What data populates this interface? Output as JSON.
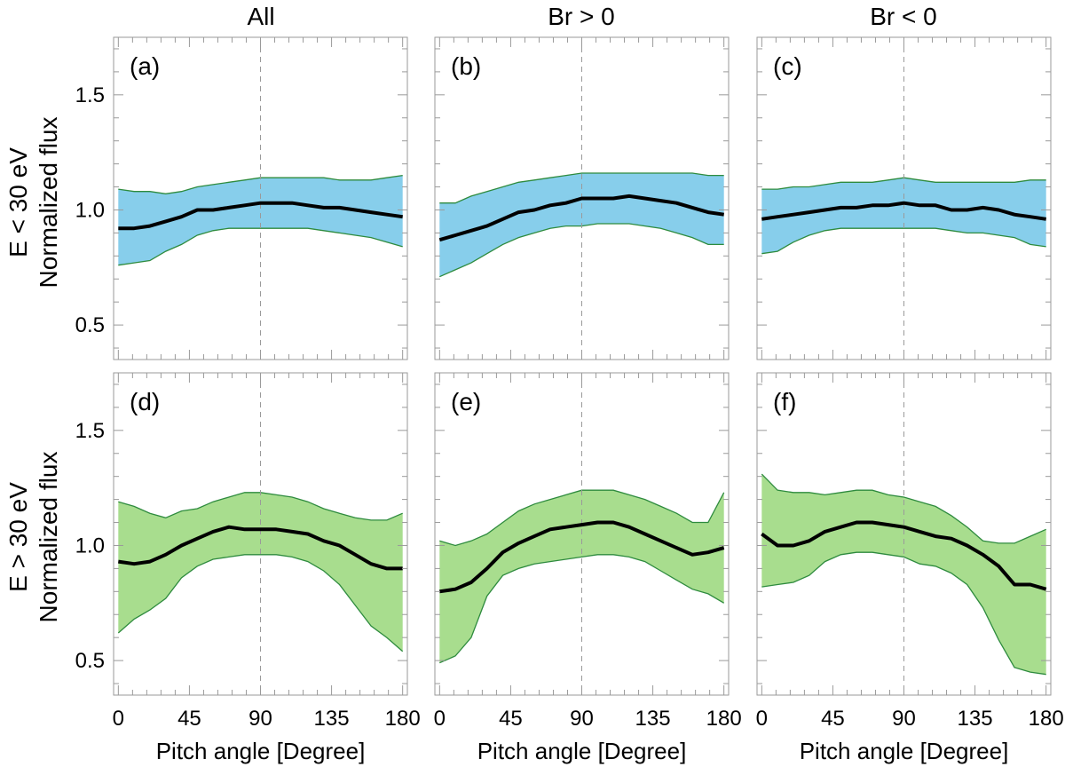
{
  "colors": {
    "low_band": "#87CEEB",
    "high_band": "#A8DD8E",
    "band_edge": "#2E8B3E",
    "mean_line": "#000000"
  },
  "column_titles": [
    "All",
    "Br > 0",
    "Br < 0"
  ],
  "row_labels": [
    {
      "energy": "E < 30 eV",
      "quantity": "Normalized flux"
    },
    {
      "energy": "E > 30 eV",
      "quantity": "Normalized flux"
    }
  ],
  "chart_data": [
    {
      "panel": "(a)",
      "type": "area",
      "column": "All",
      "row": "E < 30 eV",
      "x": [
        0,
        10,
        20,
        30,
        40,
        50,
        60,
        70,
        80,
        90,
        100,
        110,
        120,
        130,
        140,
        150,
        160,
        170,
        180
      ],
      "mean": [
        0.92,
        0.92,
        0.93,
        0.95,
        0.97,
        1.0,
        1.0,
        1.01,
        1.02,
        1.03,
        1.03,
        1.03,
        1.02,
        1.01,
        1.01,
        1.0,
        0.99,
        0.98,
        0.97
      ],
      "upper": [
        1.09,
        1.08,
        1.08,
        1.07,
        1.08,
        1.1,
        1.11,
        1.12,
        1.13,
        1.14,
        1.14,
        1.14,
        1.14,
        1.14,
        1.13,
        1.13,
        1.13,
        1.14,
        1.15
      ],
      "lower": [
        0.76,
        0.77,
        0.78,
        0.82,
        0.85,
        0.89,
        0.91,
        0.92,
        0.92,
        0.92,
        0.92,
        0.92,
        0.92,
        0.91,
        0.9,
        0.89,
        0.88,
        0.86,
        0.84
      ],
      "fill": "low",
      "xlim": [
        -3,
        183
      ],
      "ylim": [
        0.35,
        1.75
      ],
      "xticks": [
        0,
        45,
        90,
        135,
        180
      ],
      "yticks": [
        0.5,
        1.0,
        1.5
      ],
      "xlabel": "Pitch angle [Degree]",
      "ylabel": "Normalized flux"
    },
    {
      "panel": "(b)",
      "type": "area",
      "column": "Br > 0",
      "row": "E < 30 eV",
      "x": [
        0,
        10,
        20,
        30,
        40,
        50,
        60,
        70,
        80,
        90,
        100,
        110,
        120,
        130,
        140,
        150,
        160,
        170,
        180
      ],
      "mean": [
        0.87,
        0.89,
        0.91,
        0.93,
        0.96,
        0.99,
        1.0,
        1.02,
        1.03,
        1.05,
        1.05,
        1.05,
        1.06,
        1.05,
        1.04,
        1.03,
        1.01,
        0.99,
        0.98
      ],
      "upper": [
        1.03,
        1.03,
        1.06,
        1.08,
        1.1,
        1.12,
        1.13,
        1.14,
        1.15,
        1.16,
        1.16,
        1.16,
        1.16,
        1.16,
        1.16,
        1.16,
        1.16,
        1.15,
        1.15
      ],
      "lower": [
        0.71,
        0.74,
        0.77,
        0.81,
        0.85,
        0.88,
        0.9,
        0.92,
        0.93,
        0.93,
        0.94,
        0.94,
        0.94,
        0.93,
        0.92,
        0.9,
        0.88,
        0.85,
        0.85
      ],
      "fill": "low",
      "xlim": [
        -3,
        183
      ],
      "ylim": [
        0.35,
        1.75
      ],
      "xticks": [
        0,
        45,
        90,
        135,
        180
      ],
      "yticks": [
        0.5,
        1.0,
        1.5
      ],
      "xlabel": "Pitch angle [Degree]",
      "ylabel": "Normalized flux"
    },
    {
      "panel": "(c)",
      "type": "area",
      "column": "Br < 0",
      "row": "E < 30 eV",
      "x": [
        0,
        10,
        20,
        30,
        40,
        50,
        60,
        70,
        80,
        90,
        100,
        110,
        120,
        130,
        140,
        150,
        160,
        170,
        180
      ],
      "mean": [
        0.96,
        0.97,
        0.98,
        0.99,
        1.0,
        1.01,
        1.01,
        1.02,
        1.02,
        1.03,
        1.02,
        1.02,
        1.0,
        1.0,
        1.01,
        1.0,
        0.98,
        0.97,
        0.96
      ],
      "upper": [
        1.09,
        1.09,
        1.1,
        1.1,
        1.11,
        1.12,
        1.12,
        1.12,
        1.13,
        1.14,
        1.13,
        1.12,
        1.12,
        1.12,
        1.12,
        1.12,
        1.12,
        1.13,
        1.13
      ],
      "lower": [
        0.81,
        0.82,
        0.86,
        0.89,
        0.91,
        0.92,
        0.92,
        0.92,
        0.92,
        0.92,
        0.92,
        0.92,
        0.91,
        0.9,
        0.9,
        0.89,
        0.88,
        0.85,
        0.84
      ],
      "fill": "low",
      "xlim": [
        -3,
        183
      ],
      "ylim": [
        0.35,
        1.75
      ],
      "xticks": [
        0,
        45,
        90,
        135,
        180
      ],
      "yticks": [
        0.5,
        1.0,
        1.5
      ],
      "xlabel": "Pitch angle [Degree]",
      "ylabel": "Normalized flux"
    },
    {
      "panel": "(d)",
      "type": "area",
      "column": "All",
      "row": "E > 30 eV",
      "x": [
        0,
        10,
        20,
        30,
        40,
        50,
        60,
        70,
        80,
        90,
        100,
        110,
        120,
        130,
        140,
        150,
        160,
        170,
        180
      ],
      "mean": [
        0.93,
        0.92,
        0.93,
        0.96,
        1.0,
        1.03,
        1.06,
        1.08,
        1.07,
        1.07,
        1.07,
        1.06,
        1.05,
        1.02,
        1.0,
        0.96,
        0.92,
        0.9,
        0.9
      ],
      "upper": [
        1.19,
        1.17,
        1.14,
        1.12,
        1.15,
        1.16,
        1.19,
        1.21,
        1.23,
        1.23,
        1.22,
        1.21,
        1.19,
        1.16,
        1.14,
        1.12,
        1.11,
        1.11,
        1.14
      ],
      "lower": [
        0.62,
        0.68,
        0.72,
        0.77,
        0.86,
        0.91,
        0.94,
        0.95,
        0.96,
        0.96,
        0.96,
        0.95,
        0.93,
        0.89,
        0.83,
        0.74,
        0.65,
        0.6,
        0.54
      ],
      "fill": "high",
      "xlim": [
        -3,
        183
      ],
      "ylim": [
        0.35,
        1.75
      ],
      "xticks": [
        0,
        45,
        90,
        135,
        180
      ],
      "yticks": [
        0.5,
        1.0,
        1.5
      ],
      "xlabel": "Pitch angle [Degree]",
      "ylabel": "Normalized flux"
    },
    {
      "panel": "(e)",
      "type": "area",
      "column": "Br > 0",
      "row": "E > 30 eV",
      "x": [
        0,
        10,
        20,
        30,
        40,
        50,
        60,
        70,
        80,
        90,
        100,
        110,
        120,
        130,
        140,
        150,
        160,
        170,
        180
      ],
      "mean": [
        0.8,
        0.81,
        0.84,
        0.9,
        0.97,
        1.01,
        1.04,
        1.07,
        1.08,
        1.09,
        1.1,
        1.1,
        1.08,
        1.05,
        1.02,
        0.99,
        0.96,
        0.97,
        0.99
      ],
      "upper": [
        1.02,
        1.0,
        1.02,
        1.05,
        1.1,
        1.15,
        1.18,
        1.2,
        1.22,
        1.24,
        1.24,
        1.24,
        1.22,
        1.2,
        1.17,
        1.14,
        1.1,
        1.1,
        1.23
      ],
      "lower": [
        0.49,
        0.52,
        0.6,
        0.78,
        0.87,
        0.9,
        0.92,
        0.93,
        0.94,
        0.95,
        0.96,
        0.96,
        0.95,
        0.93,
        0.89,
        0.85,
        0.81,
        0.79,
        0.75
      ],
      "fill": "high",
      "xlim": [
        -3,
        183
      ],
      "ylim": [
        0.35,
        1.75
      ],
      "xticks": [
        0,
        45,
        90,
        135,
        180
      ],
      "yticks": [
        0.5,
        1.0,
        1.5
      ],
      "xlabel": "Pitch angle [Degree]",
      "ylabel": "Normalized flux"
    },
    {
      "panel": "(f)",
      "type": "area",
      "column": "Br < 0",
      "row": "E > 30 eV",
      "x": [
        0,
        10,
        20,
        30,
        40,
        50,
        60,
        70,
        80,
        90,
        100,
        110,
        120,
        130,
        140,
        150,
        160,
        170,
        180
      ],
      "mean": [
        1.05,
        1.0,
        1.0,
        1.02,
        1.06,
        1.08,
        1.1,
        1.1,
        1.09,
        1.08,
        1.06,
        1.04,
        1.03,
        1.0,
        0.96,
        0.91,
        0.83,
        0.83,
        0.81
      ],
      "upper": [
        1.31,
        1.24,
        1.23,
        1.23,
        1.22,
        1.23,
        1.24,
        1.24,
        1.22,
        1.21,
        1.19,
        1.17,
        1.13,
        1.08,
        1.02,
        1.01,
        1.01,
        1.04,
        1.07
      ],
      "lower": [
        0.82,
        0.83,
        0.84,
        0.87,
        0.93,
        0.96,
        0.97,
        0.97,
        0.96,
        0.95,
        0.92,
        0.91,
        0.88,
        0.83,
        0.73,
        0.59,
        0.47,
        0.45,
        0.44
      ],
      "fill": "high",
      "xlim": [
        -3,
        183
      ],
      "ylim": [
        0.35,
        1.75
      ],
      "xticks": [
        0,
        45,
        90,
        135,
        180
      ],
      "yticks": [
        0.5,
        1.0,
        1.5
      ],
      "xlabel": "Pitch angle [Degree]",
      "ylabel": "Normalized flux"
    }
  ]
}
